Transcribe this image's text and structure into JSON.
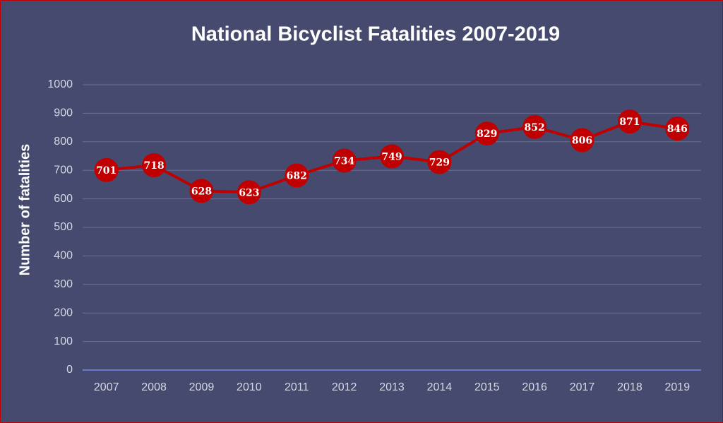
{
  "chart_data": {
    "type": "line",
    "title": "National Bicyclist Fatalities 2007-2019",
    "y_label": "Number of fatalities",
    "categories": [
      "2007",
      "2008",
      "2009",
      "2010",
      "2011",
      "2012",
      "2013",
      "2014",
      "2015",
      "2016",
      "2017",
      "2018",
      "2019"
    ],
    "values": [
      701,
      718,
      628,
      623,
      682,
      734,
      749,
      729,
      829,
      852,
      806,
      871,
      846
    ],
    "color": "#c00000",
    "ylim": [
      0,
      1000
    ],
    "yticks": [
      0,
      100,
      200,
      300,
      400,
      500,
      600,
      700,
      800,
      900,
      1000
    ],
    "grid": true
  }
}
